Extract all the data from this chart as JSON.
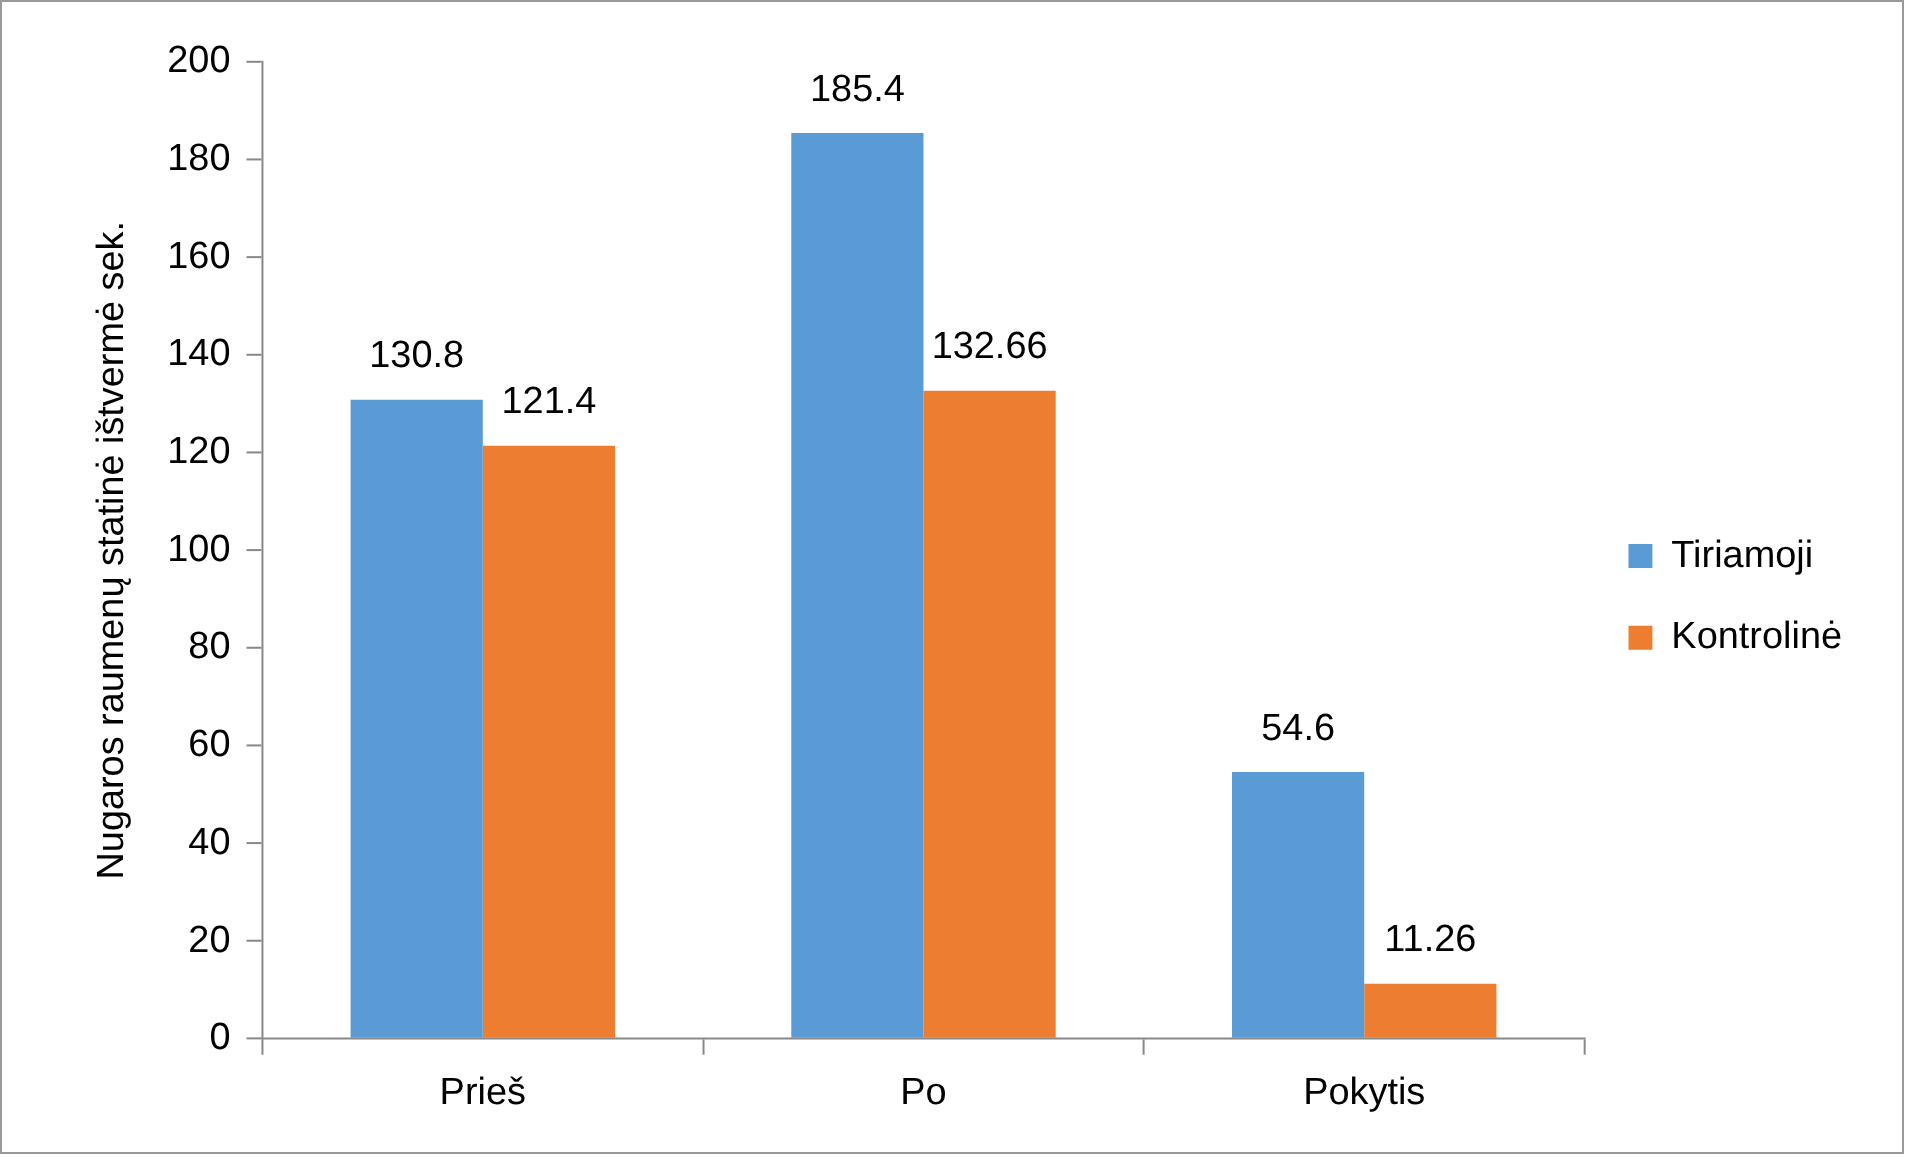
{
  "chart_data": {
    "type": "bar",
    "ylabel": "Nugaros raumenų statinė ištvermė sek.",
    "categories": [
      "Prieš",
      "Po",
      "Pokytis"
    ],
    "series": [
      {
        "name": "Tiriamoji",
        "color": "#5b9bd5",
        "values": [
          130.8,
          185.4,
          54.6
        ]
      },
      {
        "name": "Kontrolinė",
        "color": "#ed7d31",
        "values": [
          121.4,
          132.66,
          11.26
        ]
      }
    ],
    "ylim": [
      0,
      200
    ],
    "yticks": [
      0,
      20,
      40,
      60,
      80,
      100,
      120,
      140,
      160,
      180,
      200
    ],
    "grid": false,
    "legend": "right",
    "data_labels": true
  }
}
